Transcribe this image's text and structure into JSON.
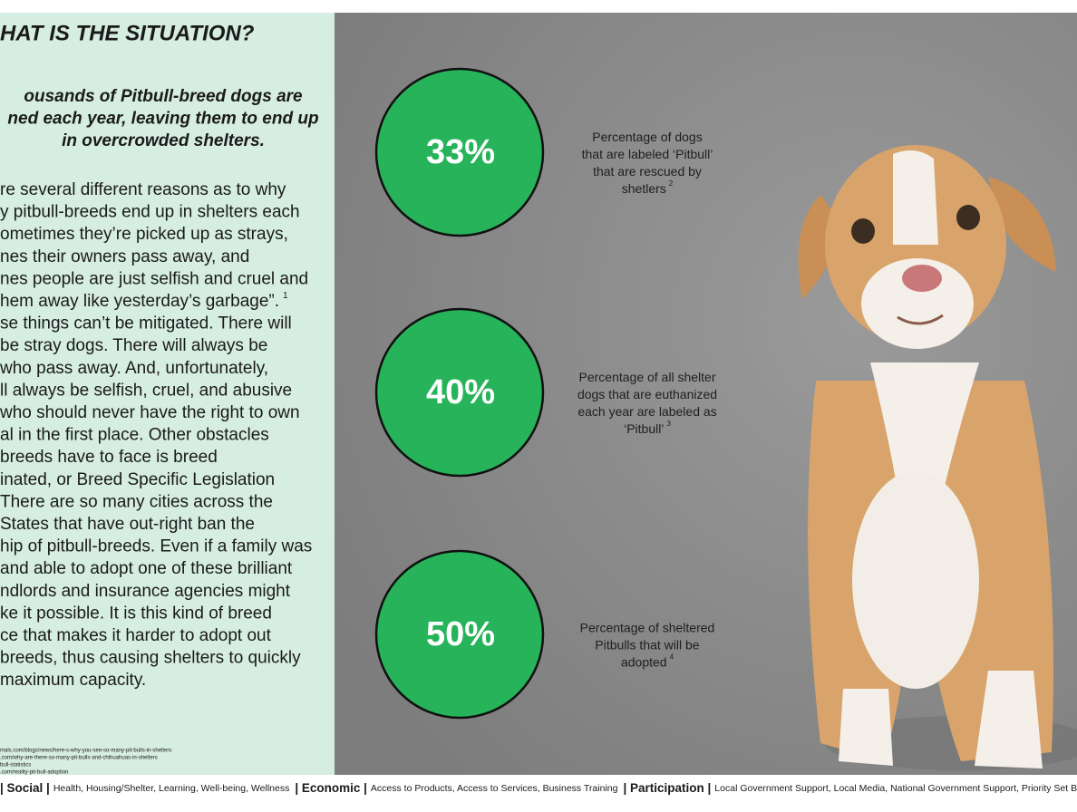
{
  "heading": "HAT IS THE SITUATION?",
  "subheading": [
    "ousands of Pitbull-breed dogs are",
    "ned each year, leaving them to end up",
    "in overcrowded shelters."
  ],
  "body": [
    "re several different reasons as to why",
    "y pitbull-breeds end up in shelters each",
    "ometimes they’re picked up as strays,",
    "nes their owners pass away, and",
    "nes people are just selfish and cruel and",
    {
      "text": "hem away like yesterday’s garbage”.",
      "note": "1"
    },
    "se things can’t be mitigated. There will",
    "be stray dogs. There will always be",
    "who pass away. And, unfortunately,",
    "ll always be selfish, cruel, and abusive",
    "who should never have the right to own",
    "al in the first place. Other obstacles",
    "breeds have to face is breed",
    "inated, or Breed Specific Legislation",
    "There are so many cities across the",
    "States that have out-right ban the",
    "hip of pitbull-breeds. Even if a family was",
    "and able to adopt one of these brilliant",
    "ndlords and insurance agencies might",
    "ke it possible. It is this kind of breed",
    "ce that makes it harder to adopt out",
    "breeds, thus causing shelters to quickly",
    "maximum capacity."
  ],
  "sources": [
    "mals.com/blogs/news/here-s-why-you-see-so-many-pit-bulls-in-shelters",
    ".com/why-are-there-so-many-pit-bulls-and-chihuahuas-in-shelters",
    "bull-statistics",
    ".com/reality-pit-bull-adoption"
  ],
  "stats": [
    {
      "value": "33%",
      "caption": [
        "Percentage of dogs",
        "that are labeled ‘Pitbull’",
        "that are rescued by",
        "shetlers"
      ],
      "note": "2"
    },
    {
      "value": "40%",
      "caption": [
        "Percentage of all shelter",
        "dogs that are euthanized",
        "each year are labeled as",
        "‘Pitbull’"
      ],
      "note": "3"
    },
    {
      "value": "50%",
      "caption": [
        "Percentage of sheltered",
        "Pitbulls that will be",
        "adopted"
      ],
      "note": "4"
    }
  ],
  "footer": [
    {
      "label": "| Social |",
      "items": "Health, Housing/Shelter, Learning, Well-being, Wellness"
    },
    {
      "label": "| Economic |",
      "items": "Access to Products, Access to Services, Business Training"
    },
    {
      "label": "| Participation |",
      "items": "Local Government Support, Local Media, National Government Support, Priority Set By Loc"
    }
  ]
}
